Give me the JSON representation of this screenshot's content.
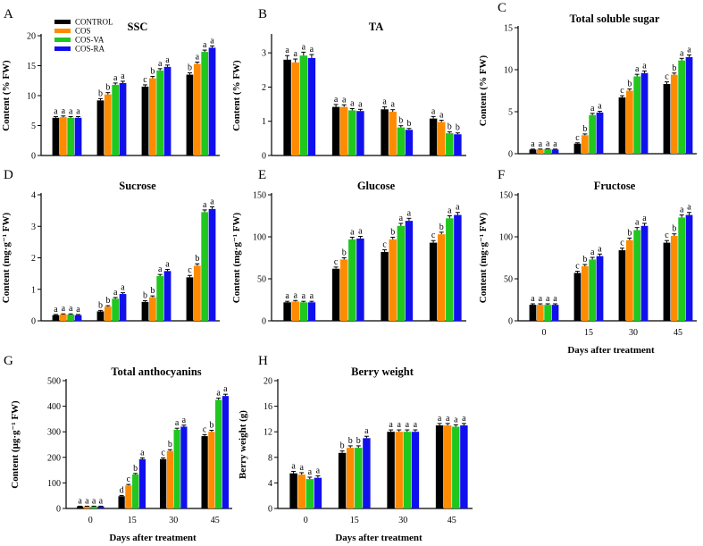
{
  "legend": [
    {
      "name": "CONTROL",
      "color": "#000000"
    },
    {
      "name": "COS",
      "color": "#ff8c00"
    },
    {
      "name": "COS-VA",
      "color": "#1fc71f"
    },
    {
      "name": "COS-RA",
      "color": "#1010ee"
    }
  ],
  "colors": [
    "#000000",
    "#ff8c00",
    "#1fc71f",
    "#1010ee"
  ],
  "chart_data": [
    {
      "letter": "A",
      "type": "bar",
      "title": "SSC",
      "ylabel": "Content (% FW)",
      "xlabel": "",
      "ylim": [
        0,
        20
      ],
      "yticks": [
        "0",
        "5",
        "10",
        "15",
        "20"
      ],
      "categories": [
        "0",
        "15",
        "30",
        "45"
      ],
      "show_xticks": false,
      "series": [
        {
          "name": "CONTROL",
          "values": [
            6.3,
            9.2,
            11.5,
            13.5
          ],
          "err": [
            0.2,
            0.3,
            0.3,
            0.3
          ],
          "sig": [
            "a",
            "b",
            "c",
            "b"
          ]
        },
        {
          "name": "COS",
          "values": [
            6.4,
            10.2,
            12.9,
            15.3
          ],
          "err": [
            0.2,
            0.3,
            0.3,
            0.3
          ],
          "sig": [
            "a",
            "b",
            "b",
            "a"
          ]
        },
        {
          "name": "COS-VA",
          "values": [
            6.3,
            11.8,
            14.2,
            17.3
          ],
          "err": [
            0.2,
            0.3,
            0.3,
            0.3
          ],
          "sig": [
            "a",
            "a",
            "a",
            "a"
          ]
        },
        {
          "name": "COS-RA",
          "values": [
            6.3,
            12.1,
            14.8,
            18.0
          ],
          "err": [
            0.2,
            0.3,
            0.3,
            0.3
          ],
          "sig": [
            "a",
            "a",
            "a",
            "a"
          ]
        }
      ]
    },
    {
      "letter": "B",
      "type": "bar",
      "title": "TA",
      "ylabel": "Content (% FW)",
      "xlabel": "",
      "ylim": [
        0,
        3.5
      ],
      "yticks": [
        "0",
        "1",
        "2",
        "3"
      ],
      "categories": [
        "0",
        "15",
        "30",
        "45"
      ],
      "show_xticks": false,
      "series": [
        {
          "name": "CONTROL",
          "values": [
            2.8,
            1.42,
            1.35,
            1.08
          ],
          "err": [
            0.12,
            0.07,
            0.07,
            0.06
          ],
          "sig": [
            "a",
            "a",
            "a",
            "a"
          ]
        },
        {
          "name": "COS",
          "values": [
            2.72,
            1.42,
            1.28,
            0.98
          ],
          "err": [
            0.1,
            0.06,
            0.06,
            0.05
          ],
          "sig": [
            "a",
            "a",
            "a",
            "a"
          ]
        },
        {
          "name": "COS-VA",
          "values": [
            2.92,
            1.32,
            0.82,
            0.65
          ],
          "err": [
            0.1,
            0.05,
            0.05,
            0.04
          ],
          "sig": [
            "a",
            "a",
            "b",
            "b"
          ]
        },
        {
          "name": "COS-RA",
          "values": [
            2.85,
            1.3,
            0.75,
            0.62
          ],
          "err": [
            0.1,
            0.05,
            0.04,
            0.04
          ],
          "sig": [
            "a",
            "a",
            "b",
            "b"
          ]
        }
      ]
    },
    {
      "letter": "C",
      "type": "bar",
      "title": "Total soluble sugar",
      "ylabel": "Content (% FW)",
      "xlabel": "",
      "ylim": [
        0,
        15
      ],
      "yticks": [
        "0",
        "5",
        "10",
        "15"
      ],
      "categories": [
        "0",
        "15",
        "30",
        "45"
      ],
      "show_xticks": false,
      "series": [
        {
          "name": "CONTROL",
          "values": [
            0.5,
            1.2,
            6.7,
            8.3
          ],
          "err": [
            0.05,
            0.1,
            0.2,
            0.25
          ],
          "sig": [
            "a",
            "c",
            "c",
            "c"
          ]
        },
        {
          "name": "COS",
          "values": [
            0.5,
            2.2,
            7.5,
            9.4
          ],
          "err": [
            0.05,
            0.15,
            0.2,
            0.2
          ],
          "sig": [
            "a",
            "b",
            "b",
            "b"
          ]
        },
        {
          "name": "COS-VA",
          "values": [
            0.55,
            4.6,
            9.2,
            11.1
          ],
          "err": [
            0.05,
            0.2,
            0.25,
            0.25
          ],
          "sig": [
            "a",
            "a",
            "a",
            "a"
          ]
        },
        {
          "name": "COS-RA",
          "values": [
            0.5,
            4.9,
            9.6,
            11.5
          ],
          "err": [
            0.05,
            0.15,
            0.25,
            0.25
          ],
          "sig": [
            "a",
            "a",
            "a",
            "a"
          ]
        }
      ]
    },
    {
      "letter": "D",
      "type": "bar",
      "title": "Sucrose",
      "ylabel": "Content (mg·g⁻¹ FW)",
      "xlabel": "",
      "ylim": [
        0,
        4
      ],
      "yticks": [
        "0",
        "1",
        "2",
        "3",
        "4"
      ],
      "categories": [
        "0",
        "15",
        "30",
        "45"
      ],
      "show_xticks": false,
      "series": [
        {
          "name": "CONTROL",
          "values": [
            0.18,
            0.3,
            0.6,
            1.38
          ],
          "err": [
            0.02,
            0.03,
            0.04,
            0.06
          ],
          "sig": [
            "a",
            "b",
            "b",
            "c"
          ]
        },
        {
          "name": "COS",
          "values": [
            0.2,
            0.45,
            0.75,
            1.75
          ],
          "err": [
            0.02,
            0.03,
            0.04,
            0.06
          ],
          "sig": [
            "a",
            "b",
            "b",
            "b"
          ]
        },
        {
          "name": "COS-VA",
          "values": [
            0.2,
            0.7,
            1.42,
            3.45
          ],
          "err": [
            0.02,
            0.04,
            0.05,
            0.07
          ],
          "sig": [
            "a",
            "a",
            "a",
            "a"
          ]
        },
        {
          "name": "COS-RA",
          "values": [
            0.18,
            0.85,
            1.58,
            3.55
          ],
          "err": [
            0.02,
            0.04,
            0.05,
            0.07
          ],
          "sig": [
            "a",
            "a",
            "a",
            "a"
          ]
        }
      ]
    },
    {
      "letter": "E",
      "type": "bar",
      "title": "Glucose",
      "ylabel": "Content (mg·g⁻¹ FW)",
      "xlabel": "",
      "ylim": [
        0,
        150
      ],
      "yticks": [
        "0",
        "50",
        "100",
        "150"
      ],
      "categories": [
        "0",
        "15",
        "30",
        "45"
      ],
      "show_xticks": false,
      "series": [
        {
          "name": "CONTROL",
          "values": [
            22,
            62,
            82,
            93
          ],
          "err": [
            1.2,
            2,
            2.5,
            2.5
          ],
          "sig": [
            "a",
            "c",
            "c",
            "c"
          ]
        },
        {
          "name": "COS",
          "values": [
            23,
            73,
            97,
            103
          ],
          "err": [
            1.2,
            2,
            2.5,
            2.5
          ],
          "sig": [
            "a",
            "b",
            "b",
            "b"
          ]
        },
        {
          "name": "COS-VA",
          "values": [
            22,
            97,
            113,
            122
          ],
          "err": [
            1.2,
            2.5,
            3,
            3
          ],
          "sig": [
            "a",
            "a",
            "a",
            "a"
          ]
        },
        {
          "name": "COS-RA",
          "values": [
            22,
            98,
            119,
            126
          ],
          "err": [
            1.2,
            2.5,
            3,
            3
          ],
          "sig": [
            "a",
            "a",
            "a",
            "a"
          ]
        }
      ]
    },
    {
      "letter": "F",
      "type": "bar",
      "title": "Fructose",
      "ylabel": "Content (mg·g⁻¹ FW)",
      "xlabel": "Days after treatment",
      "ylim": [
        0,
        150
      ],
      "yticks": [
        "0",
        "50",
        "100",
        "150"
      ],
      "categories": [
        "0",
        "15",
        "30",
        "45"
      ],
      "show_xticks": true,
      "series": [
        {
          "name": "CONTROL",
          "values": [
            19,
            57,
            84,
            93
          ],
          "err": [
            1.2,
            2,
            2.5,
            2.5
          ],
          "sig": [
            "a",
            "c",
            "c",
            "c"
          ]
        },
        {
          "name": "COS",
          "values": [
            19,
            65,
            96,
            101
          ],
          "err": [
            1.2,
            2,
            2.5,
            2.5
          ],
          "sig": [
            "a",
            "b",
            "b",
            "b"
          ]
        },
        {
          "name": "COS-VA",
          "values": [
            19,
            73,
            108,
            123
          ],
          "err": [
            1.2,
            2.5,
            3,
            3
          ],
          "sig": [
            "a",
            "a",
            "a",
            "a"
          ]
        },
        {
          "name": "COS-RA",
          "values": [
            19,
            77,
            113,
            126
          ],
          "err": [
            1.2,
            2.5,
            3,
            3
          ],
          "sig": [
            "a",
            "a",
            "a",
            "a"
          ]
        }
      ]
    },
    {
      "letter": "G",
      "type": "bar",
      "title": "Total anthocyanins",
      "ylabel": "Content (μg·g⁻¹ FW)",
      "xlabel": "Days after treatment",
      "ylim": [
        0,
        500
      ],
      "yticks": [
        "0",
        "100",
        "200",
        "300",
        "400",
        "500"
      ],
      "categories": [
        "0",
        "15",
        "30",
        "45"
      ],
      "show_xticks": true,
      "series": [
        {
          "name": "CONTROL",
          "values": [
            8,
            48,
            193,
            283
          ],
          "err": [
            1,
            3,
            5,
            6
          ],
          "sig": [
            "a",
            "d",
            "c",
            "c"
          ]
        },
        {
          "name": "COS",
          "values": [
            8,
            90,
            225,
            300
          ],
          "err": [
            1,
            4,
            5,
            6
          ],
          "sig": [
            "a",
            "c",
            "b",
            "b"
          ]
        },
        {
          "name": "COS-VA",
          "values": [
            8,
            133,
            308,
            425
          ],
          "err": [
            1,
            4,
            6,
            7
          ],
          "sig": [
            "a",
            "b",
            "a",
            "a"
          ]
        },
        {
          "name": "COS-RA",
          "values": [
            8,
            193,
            320,
            440
          ],
          "err": [
            1,
            5,
            6,
            7
          ],
          "sig": [
            "a",
            "a",
            "a",
            "a"
          ]
        }
      ]
    },
    {
      "letter": "H",
      "type": "bar",
      "title": "Berry weight",
      "ylabel": "Berry weight (g)",
      "xlabel": "Days after treatment",
      "ylim": [
        0,
        20
      ],
      "yticks": [
        "0",
        "4",
        "8",
        "12",
        "16",
        "20"
      ],
      "categories": [
        "0",
        "15",
        "30",
        "45"
      ],
      "show_xticks": true,
      "series": [
        {
          "name": "CONTROL",
          "values": [
            5.5,
            8.7,
            12.0,
            13.0
          ],
          "err": [
            0.3,
            0.3,
            0.3,
            0.3
          ],
          "sig": [
            "a",
            "b",
            "a",
            "a"
          ]
        },
        {
          "name": "COS",
          "values": [
            5.3,
            9.5,
            12.0,
            13.0
          ],
          "err": [
            0.3,
            0.3,
            0.3,
            0.3
          ],
          "sig": [
            "a",
            "b",
            "a",
            "a"
          ]
        },
        {
          "name": "COS-VA",
          "values": [
            4.6,
            9.5,
            12.0,
            12.8
          ],
          "err": [
            0.3,
            0.3,
            0.3,
            0.3
          ],
          "sig": [
            "a",
            "b",
            "a",
            "a"
          ]
        },
        {
          "name": "COS-RA",
          "values": [
            4.8,
            11.0,
            12.0,
            13.0
          ],
          "err": [
            0.3,
            0.3,
            0.3,
            0.3
          ],
          "sig": [
            "a",
            "a",
            "a",
            "a"
          ]
        }
      ]
    }
  ]
}
